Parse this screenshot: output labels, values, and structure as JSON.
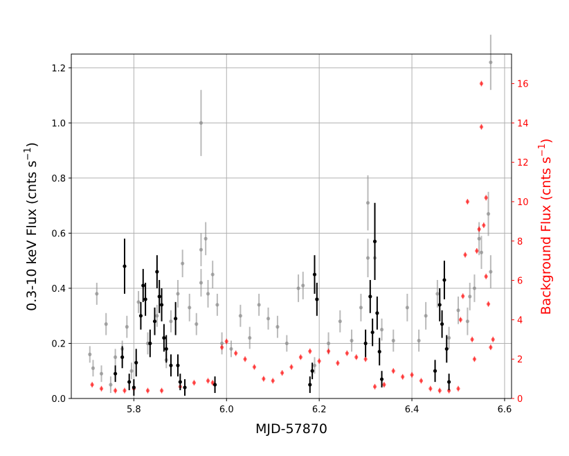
{
  "chart_data": {
    "type": "scatter",
    "xlabel": "MJD-57870",
    "ylabel_left": "0.3-10 keV Flux (cnts s$^{-1}$)",
    "ylabel_left_text": "0.3-10 keV Flux (cnts s",
    "ylabel_left_sup": "−1",
    "ylabel_left_close": ")",
    "ylabel_right_text": "Background Flux (cnts s",
    "ylabel_right_sup": "−1",
    "ylabel_right_close": ")",
    "xlim": [
      5.665,
      6.615
    ],
    "ylim_left": [
      0,
      1.25
    ],
    "ylim_right": [
      0,
      17.5
    ],
    "x_ticks": [
      "5.8",
      "6.0",
      "6.2",
      "6.4",
      "6.6"
    ],
    "y_ticks_left": [
      "0.0",
      "0.2",
      "0.4",
      "0.6",
      "0.8",
      "1.0",
      "1.2"
    ],
    "y_ticks_right": [
      "0",
      "2",
      "4",
      "6",
      "8",
      "10",
      "12",
      "14",
      "16"
    ],
    "grid": true,
    "colors": {
      "source_all": "#8c8c8c",
      "source_good": "#000000",
      "background": "#ff0000",
      "right_axis": "#ff0000"
    },
    "series": [
      {
        "role": "source-all",
        "points": [
          [
            5.705,
            0.16,
            0.03
          ],
          [
            5.712,
            0.11,
            0.03
          ],
          [
            5.72,
            0.38,
            0.04
          ],
          [
            5.73,
            0.09,
            0.03
          ],
          [
            5.74,
            0.27,
            0.04
          ],
          [
            5.75,
            0.05,
            0.03
          ],
          [
            5.76,
            0.15,
            0.03
          ],
          [
            5.775,
            0.18,
            0.03
          ],
          [
            5.785,
            0.26,
            0.04
          ],
          [
            5.795,
            0.1,
            0.03
          ],
          [
            5.81,
            0.35,
            0.04
          ],
          [
            5.83,
            0.2,
            0.04
          ],
          [
            5.85,
            0.3,
            0.04
          ],
          [
            5.87,
            0.14,
            0.03
          ],
          [
            5.88,
            0.28,
            0.04
          ],
          [
            5.895,
            0.38,
            0.05
          ],
          [
            5.905,
            0.49,
            0.05
          ],
          [
            5.92,
            0.33,
            0.05
          ],
          [
            5.935,
            0.27,
            0.04
          ],
          [
            5.945,
            1.0,
            0.12
          ],
          [
            5.945,
            0.54,
            0.06
          ],
          [
            5.945,
            0.42,
            0.05
          ],
          [
            5.955,
            0.58,
            0.06
          ],
          [
            5.96,
            0.38,
            0.05
          ],
          [
            5.97,
            0.45,
            0.05
          ],
          [
            5.98,
            0.34,
            0.04
          ],
          [
            5.99,
            0.2,
            0.04
          ],
          [
            6.01,
            0.18,
            0.03
          ],
          [
            6.03,
            0.3,
            0.04
          ],
          [
            6.05,
            0.22,
            0.04
          ],
          [
            6.07,
            0.34,
            0.04
          ],
          [
            6.09,
            0.29,
            0.04
          ],
          [
            6.11,
            0.26,
            0.04
          ],
          [
            6.13,
            0.2,
            0.03
          ],
          [
            6.155,
            0.4,
            0.05
          ],
          [
            6.165,
            0.41,
            0.05
          ],
          [
            6.19,
            0.12,
            0.03
          ],
          [
            6.22,
            0.2,
            0.04
          ],
          [
            6.245,
            0.28,
            0.04
          ],
          [
            6.27,
            0.21,
            0.04
          ],
          [
            6.29,
            0.33,
            0.05
          ],
          [
            6.305,
            0.71,
            0.1
          ],
          [
            6.305,
            0.51,
            0.07
          ],
          [
            6.32,
            0.51,
            0.07
          ],
          [
            6.335,
            0.25,
            0.04
          ],
          [
            6.36,
            0.21,
            0.04
          ],
          [
            6.39,
            0.33,
            0.05
          ],
          [
            6.415,
            0.21,
            0.04
          ],
          [
            6.43,
            0.3,
            0.05
          ],
          [
            6.455,
            0.38,
            0.05
          ],
          [
            6.48,
            0.22,
            0.04
          ],
          [
            6.5,
            0.32,
            0.05
          ],
          [
            6.52,
            0.28,
            0.05
          ],
          [
            6.535,
            0.4,
            0.05
          ],
          [
            6.55,
            0.53,
            0.06
          ],
          [
            6.565,
            0.67,
            0.08
          ],
          [
            6.57,
            0.46,
            0.06
          ],
          [
            6.57,
            1.22,
            0.1
          ],
          [
            6.545,
            0.58,
            0.06
          ],
          [
            6.525,
            0.37,
            0.05
          ]
        ]
      },
      {
        "role": "source-good",
        "points": [
          [
            5.76,
            0.09,
            0.03
          ],
          [
            5.775,
            0.15,
            0.04
          ],
          [
            5.78,
            0.48,
            0.1
          ],
          [
            5.79,
            0.06,
            0.03
          ],
          [
            5.8,
            0.04,
            0.03
          ],
          [
            5.805,
            0.13,
            0.05
          ],
          [
            5.815,
            0.3,
            0.05
          ],
          [
            5.82,
            0.41,
            0.06
          ],
          [
            5.825,
            0.36,
            0.06
          ],
          [
            5.835,
            0.2,
            0.05
          ],
          [
            5.845,
            0.28,
            0.05
          ],
          [
            5.85,
            0.46,
            0.06
          ],
          [
            5.855,
            0.37,
            0.06
          ],
          [
            5.86,
            0.34,
            0.06
          ],
          [
            5.865,
            0.22,
            0.05
          ],
          [
            5.87,
            0.18,
            0.05
          ],
          [
            5.88,
            0.12,
            0.04
          ],
          [
            5.89,
            0.29,
            0.06
          ],
          [
            5.895,
            0.12,
            0.04
          ],
          [
            5.9,
            0.06,
            0.03
          ],
          [
            5.91,
            0.04,
            0.03
          ],
          [
            5.975,
            0.05,
            0.03
          ],
          [
            6.18,
            0.05,
            0.03
          ],
          [
            6.185,
            0.1,
            0.03
          ],
          [
            6.19,
            0.45,
            0.07
          ],
          [
            6.195,
            0.36,
            0.06
          ],
          [
            6.3,
            0.2,
            0.05
          ],
          [
            6.31,
            0.37,
            0.06
          ],
          [
            6.315,
            0.24,
            0.05
          ],
          [
            6.32,
            0.57,
            0.14
          ],
          [
            6.325,
            0.31,
            0.06
          ],
          [
            6.33,
            0.17,
            0.05
          ],
          [
            6.335,
            0.07,
            0.03
          ],
          [
            6.45,
            0.1,
            0.04
          ],
          [
            6.46,
            0.34,
            0.06
          ],
          [
            6.465,
            0.27,
            0.05
          ],
          [
            6.47,
            0.43,
            0.07
          ],
          [
            6.475,
            0.18,
            0.05
          ],
          [
            6.48,
            0.06,
            0.03
          ]
        ]
      },
      {
        "role": "background",
        "points": [
          [
            5.71,
            0.7
          ],
          [
            5.73,
            0.5
          ],
          [
            5.76,
            0.4
          ],
          [
            5.78,
            0.4
          ],
          [
            5.8,
            0.5
          ],
          [
            5.83,
            0.4
          ],
          [
            5.86,
            0.4
          ],
          [
            5.9,
            0.6
          ],
          [
            5.93,
            0.8
          ],
          [
            5.96,
            0.9
          ],
          [
            5.97,
            0.8
          ],
          [
            5.99,
            2.6
          ],
          [
            6.0,
            2.9
          ],
          [
            6.02,
            2.3
          ],
          [
            6.04,
            2.0
          ],
          [
            6.06,
            1.6
          ],
          [
            6.08,
            1.0
          ],
          [
            6.1,
            0.9
          ],
          [
            6.12,
            1.3
          ],
          [
            6.14,
            1.6
          ],
          [
            6.16,
            2.1
          ],
          [
            6.18,
            2.4
          ],
          [
            6.2,
            1.9
          ],
          [
            6.22,
            2.4
          ],
          [
            6.24,
            1.8
          ],
          [
            6.26,
            2.3
          ],
          [
            6.28,
            2.1
          ],
          [
            6.3,
            2.0
          ],
          [
            6.32,
            0.6
          ],
          [
            6.34,
            0.7
          ],
          [
            6.36,
            1.4
          ],
          [
            6.38,
            1.1
          ],
          [
            6.4,
            1.2
          ],
          [
            6.42,
            0.9
          ],
          [
            6.44,
            0.5
          ],
          [
            6.46,
            0.4
          ],
          [
            6.48,
            0.4
          ],
          [
            6.5,
            0.5
          ],
          [
            6.505,
            4.0
          ],
          [
            6.51,
            5.2
          ],
          [
            6.515,
            7.3
          ],
          [
            6.52,
            10.0
          ],
          [
            6.53,
            3.0
          ],
          [
            6.535,
            2.0
          ],
          [
            6.54,
            7.5
          ],
          [
            6.545,
            8.6
          ],
          [
            6.55,
            16.0
          ],
          [
            6.55,
            13.8
          ],
          [
            6.555,
            8.8
          ],
          [
            6.56,
            10.2
          ],
          [
            6.56,
            6.2
          ],
          [
            6.565,
            4.8
          ],
          [
            6.57,
            2.6
          ],
          [
            6.575,
            3.0
          ]
        ]
      }
    ]
  }
}
